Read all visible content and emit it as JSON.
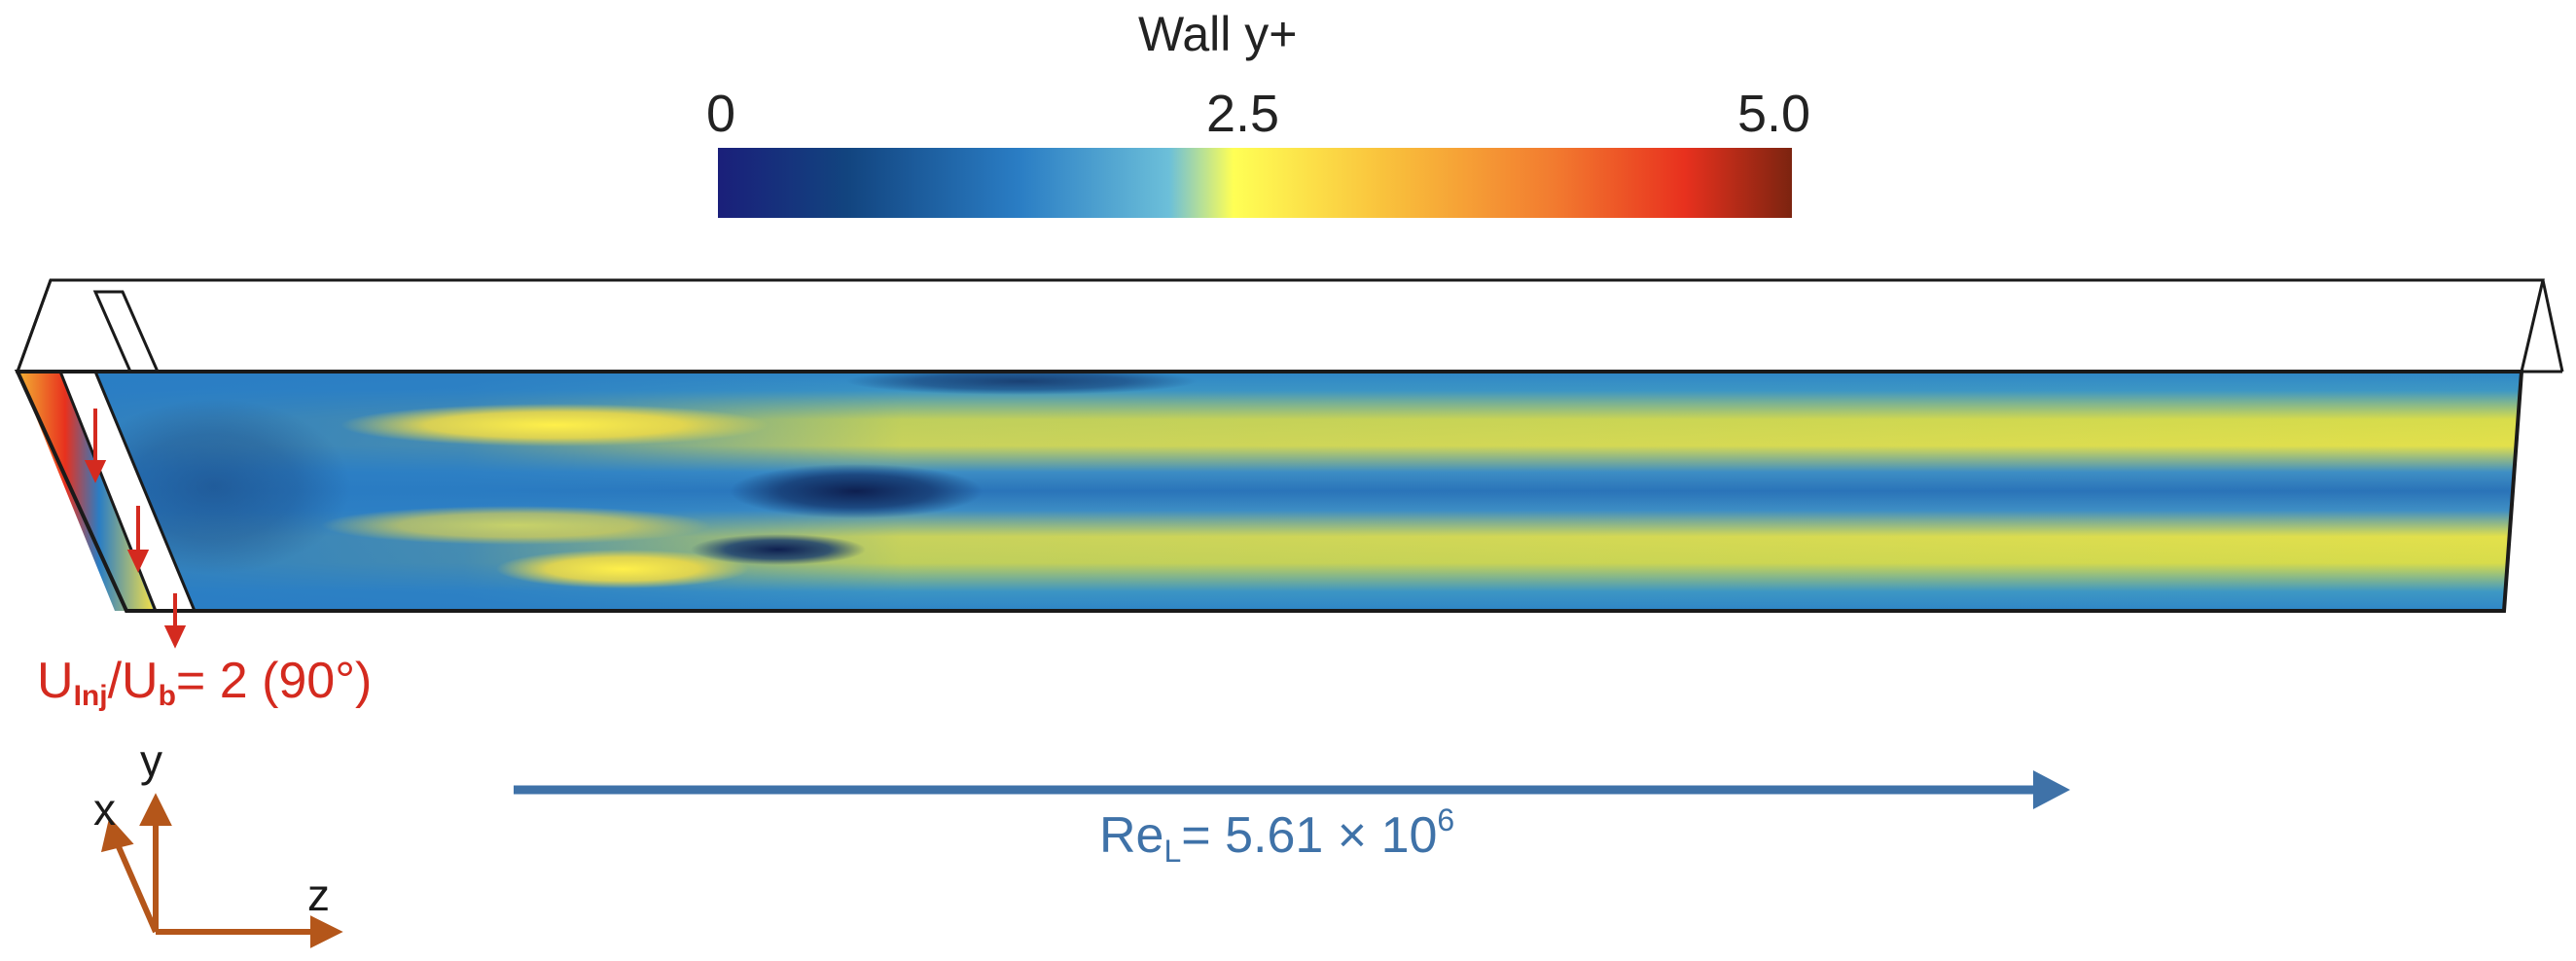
{
  "colorbar": {
    "title": "Wall y+",
    "ticks": [
      "0",
      "2.5",
      "5.0"
    ],
    "range": [
      0,
      5.0
    ],
    "colormap": [
      "#1a1f7a",
      "#12447f",
      "#2a7dc4",
      "#6cbfd9",
      "#ffff55",
      "#f9c23c",
      "#f27a2f",
      "#e8311e",
      "#7c2410"
    ]
  },
  "injection": {
    "u_base": "U",
    "sub_inj": "Inj",
    "slash": "/U",
    "sub_b": "b",
    "rest": "= 2 (90°)",
    "color": "#d42a1f"
  },
  "reynolds": {
    "re": "Re",
    "sub": "L",
    "value": "= 5.61 × 10",
    "exp": "6",
    "color": "#3f72a8"
  },
  "axes": {
    "x": "x",
    "y": "y",
    "z": "z",
    "color": "#b4561a"
  },
  "field": {
    "band_colors": {
      "low": "#1a3f7c",
      "mid": "#2a7dc4",
      "high": "#f0e242"
    }
  }
}
